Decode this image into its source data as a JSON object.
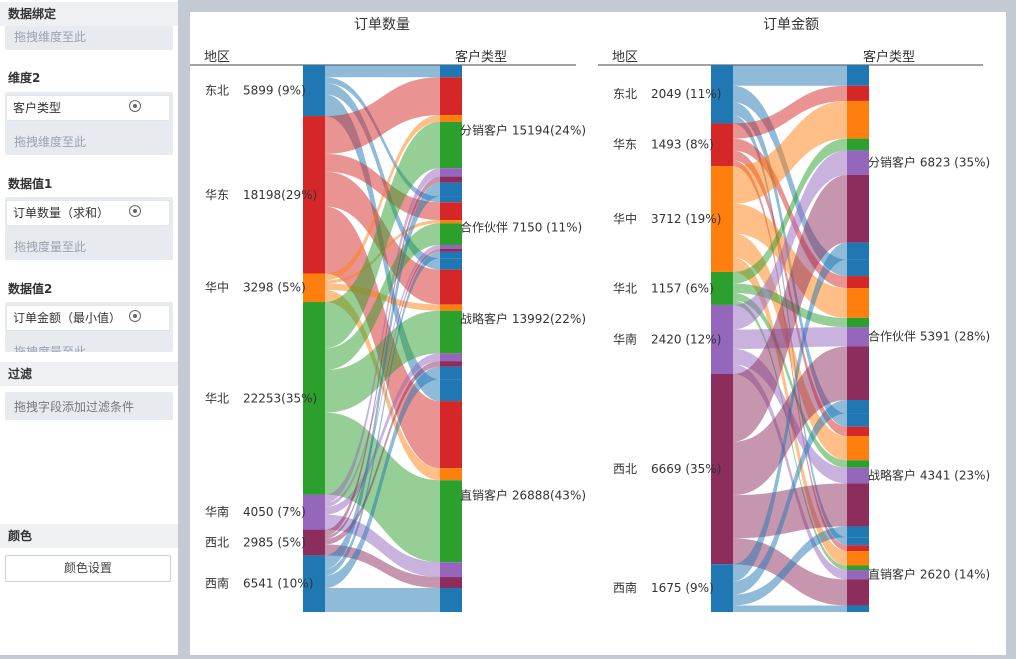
{
  "panel": {
    "binding_title": "数据绑定",
    "drag_dim_hint": "拖拽维度至此",
    "dim2_title": "维度2",
    "dim2_field": "客户类型",
    "val1_title": "数据值1",
    "val1_field": "订单数量（求和）",
    "drag_measure_hint": "拖拽度量至此",
    "val2_title": "数据值2",
    "val2_field": "订单金额（最小值）",
    "filter_title": "过滤",
    "filter_hint": "拖拽字段添加过滤条件",
    "color_title": "颜色",
    "color_button": "颜色设置"
  },
  "colors": {
    "东北": "#1f77b4",
    "华东": "#d62728",
    "华中": "#ff7f0e",
    "华北": "#2ca02c",
    "华南": "#9467bd",
    "西北": "#8c2d5e",
    "西南": "#1f77b4"
  },
  "chart_data": [
    {
      "type": "sankey",
      "title": "订单数量",
      "left_header": "地区",
      "right_header": "客户类型",
      "sources": [
        {
          "name": "东北",
          "value": 5899,
          "label": "5899  (9%)"
        },
        {
          "name": "华东",
          "value": 18198,
          "label": "18198(29%)"
        },
        {
          "name": "华中",
          "value": 3298,
          "label": "3298  (5%)"
        },
        {
          "name": "华北",
          "value": 22253,
          "label": "22253(35%)"
        },
        {
          "name": "华南",
          "value": 4050,
          "label": "4050  (7%)"
        },
        {
          "name": "西北",
          "value": 2985,
          "label": "2985  (5%)"
        },
        {
          "name": "西南",
          "value": 6541,
          "label": "6541  (10%)"
        }
      ],
      "targets": [
        {
          "name": "分销客户",
          "value": 15194,
          "label": "15194(24%)"
        },
        {
          "name": "合作伙伴",
          "value": 7150,
          "label": "7150 (11%)"
        },
        {
          "name": "战略客户",
          "value": 13992,
          "label": "13992(22%)"
        },
        {
          "name": "直销客户",
          "value": 26888,
          "label": "26888(43%)"
        }
      ],
      "flows": [
        [
          "东北",
          "分销客户",
          1418
        ],
        [
          "东北",
          "合作伙伴",
          667
        ],
        [
          "东北",
          "战略客户",
          1306
        ],
        [
          "东北",
          "直销客户",
          2508
        ],
        [
          "华东",
          "分销客户",
          4371
        ],
        [
          "华东",
          "合作伙伴",
          2057
        ],
        [
          "华东",
          "战略客户",
          4025
        ],
        [
          "华东",
          "直销客户",
          7745
        ],
        [
          "华中",
          "分销客户",
          792
        ],
        [
          "华中",
          "合作伙伴",
          373
        ],
        [
          "华中",
          "战略客户",
          730
        ],
        [
          "华中",
          "直销客户",
          1403
        ],
        [
          "华北",
          "分销客户",
          5345
        ],
        [
          "华北",
          "合作伙伴",
          2516
        ],
        [
          "华北",
          "战略客户",
          4924
        ],
        [
          "华北",
          "直销客户",
          9468
        ],
        [
          "华南",
          "分销客户",
          973
        ],
        [
          "华南",
          "合作伙伴",
          458
        ],
        [
          "华南",
          "战略客户",
          896
        ],
        [
          "华南",
          "直销客户",
          1723
        ],
        [
          "西北",
          "分销客户",
          717
        ],
        [
          "西北",
          "合作伙伴",
          338
        ],
        [
          "西北",
          "战略客户",
          660
        ],
        [
          "西北",
          "直销客户",
          1270
        ],
        [
          "西南",
          "分销客户",
          1578
        ],
        [
          "西南",
          "合作伙伴",
          741
        ],
        [
          "西南",
          "战略客户",
          1451
        ],
        [
          "西南",
          "直销客户",
          2771
        ]
      ]
    },
    {
      "type": "sankey",
      "title": "订单金额",
      "left_header": "地区",
      "right_header": "客户类型",
      "sources": [
        {
          "name": "东北",
          "value": 2049,
          "label": "2049 (11%)"
        },
        {
          "name": "华东",
          "value": 1493,
          "label": "1493  (8%)"
        },
        {
          "name": "华中",
          "value": 3712,
          "label": "3712 (19%)"
        },
        {
          "name": "华北",
          "value": 1157,
          "label": "1157  (6%)"
        },
        {
          "name": "华南",
          "value": 2420,
          "label": "2420 (12%)"
        },
        {
          "name": "西北",
          "value": 6669,
          "label": "6669 (35%)"
        },
        {
          "name": "西南",
          "value": 1675,
          "label": "1675  (9%)"
        }
      ],
      "targets": [
        {
          "name": "分销客户",
          "value": 6823,
          "label": "6823 (35%)"
        },
        {
          "name": "合作伙伴",
          "value": 5391,
          "label": "5391 (28%)"
        },
        {
          "name": "战略客户",
          "value": 4341,
          "label": "4341 (23%)"
        },
        {
          "name": "直销客户",
          "value": 2620,
          "label": "2620 (14%)"
        }
      ],
      "flows": [
        [
          "东北",
          "分销客户",
          729
        ],
        [
          "东北",
          "合作伙伴",
          576
        ],
        [
          "东北",
          "战略客户",
          464
        ],
        [
          "东北",
          "直销客户",
          280
        ],
        [
          "华东",
          "分销客户",
          531
        ],
        [
          "华东",
          "合作伙伴",
          420
        ],
        [
          "华东",
          "战略客户",
          338
        ],
        [
          "华东",
          "直销客户",
          204
        ],
        [
          "华中",
          "分销客户",
          1321
        ],
        [
          "华中",
          "合作伙伴",
          1044
        ],
        [
          "华中",
          "战略客户",
          840
        ],
        [
          "华中",
          "直销客户",
          507
        ],
        [
          "华北",
          "分销客户",
          412
        ],
        [
          "华北",
          "合作伙伴",
          325
        ],
        [
          "华北",
          "战略客户",
          262
        ],
        [
          "华北",
          "直销客户",
          158
        ],
        [
          "华南",
          "分销客户",
          861
        ],
        [
          "华南",
          "合作伙伴",
          680
        ],
        [
          "华南",
          "战略客户",
          548
        ],
        [
          "华南",
          "直销客户",
          331
        ],
        [
          "西北",
          "分销客户",
          2373
        ],
        [
          "西北",
          "合作伙伴",
          1875
        ],
        [
          "西北",
          "战略客户",
          1510
        ],
        [
          "西北",
          "直销客户",
          911
        ],
        [
          "西南",
          "分销客户",
          596
        ],
        [
          "西南",
          "合作伙伴",
          471
        ],
        [
          "西南",
          "战略客户",
          379
        ],
        [
          "西南",
          "直销客户",
          229
        ]
      ]
    }
  ]
}
